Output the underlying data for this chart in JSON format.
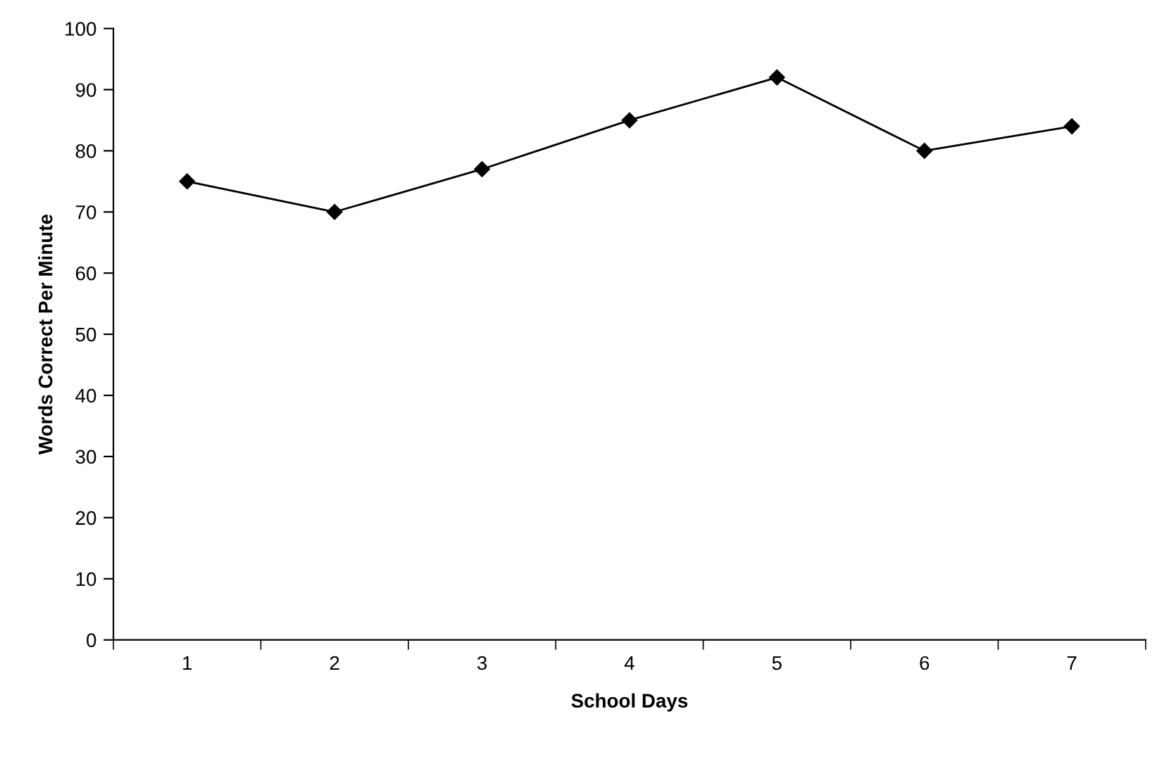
{
  "chart_data": {
    "type": "line",
    "xlabel": "School Days",
    "ylabel": "Words Correct Per Minute",
    "categories": [
      "1",
      "2",
      "3",
      "4",
      "5",
      "6",
      "7"
    ],
    "series": [
      {
        "color": "#000000",
        "values": [
          75,
          70,
          77,
          85,
          92,
          80,
          84
        ]
      }
    ],
    "ylim": [
      0,
      100
    ],
    "yticks": [
      0,
      10,
      20,
      30,
      40,
      50,
      60,
      70,
      80,
      90,
      100
    ],
    "grid": false,
    "legend": false,
    "marker": "diamond",
    "line_style": "solid"
  }
}
